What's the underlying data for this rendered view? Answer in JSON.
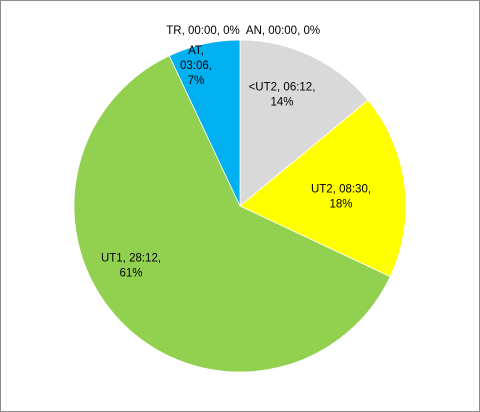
{
  "chart_data": {
    "type": "pie",
    "title": "",
    "slices": [
      {
        "name": "AN",
        "time": "00:00",
        "percent": 0,
        "color": "#ffffff",
        "label_lines": [
          "AN, 00:00, 0%"
        ]
      },
      {
        "name": "<UT2",
        "time": "06:12",
        "percent": 14,
        "color": "#d9d9d9",
        "label_lines": [
          "<UT2, 06:12,",
          "14%"
        ]
      },
      {
        "name": "UT2",
        "time": "08:30",
        "percent": 18,
        "color": "#ffff00",
        "label_lines": [
          "UT2, 08:30,",
          "18%"
        ]
      },
      {
        "name": "UT1",
        "time": "28:12",
        "percent": 61,
        "color": "#92d050",
        "label_lines": [
          "UT1, 28:12,",
          "61%"
        ]
      },
      {
        "name": "AT",
        "time": "03:06",
        "percent": 7,
        "color": "#00b0f0",
        "label_lines": [
          "AT,",
          "03:06,",
          "7%"
        ]
      },
      {
        "name": "TR",
        "time": "00:00",
        "percent": 0,
        "color": "#ffffff",
        "label_lines": [
          "TR, 00:00, 0%"
        ]
      }
    ]
  }
}
